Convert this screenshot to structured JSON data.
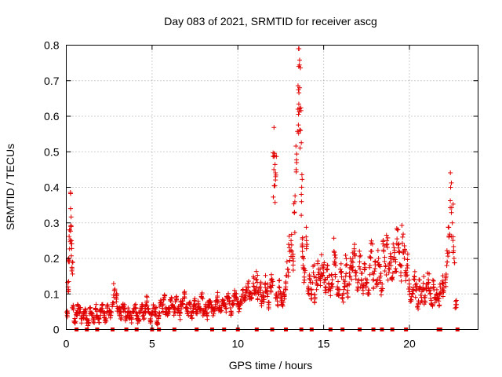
{
  "chart_data": {
    "type": "scatter",
    "title": "Day 083 of 2021, SRMTID for receiver ascg",
    "xlabel": "GPS time / hours",
    "ylabel": "SRMTID / TECUs",
    "xlim": [
      0,
      24
    ],
    "ylim": [
      0,
      0.8
    ],
    "xticks": [
      0,
      5,
      10,
      15,
      20
    ],
    "yticks": [
      0,
      0.1,
      0.2,
      0.3,
      0.4,
      0.5,
      0.6,
      0.7,
      0.8
    ],
    "xtick_labels": [
      "0",
      "5",
      "10",
      "15",
      "20"
    ],
    "ytick_labels": [
      "0",
      "0.1",
      "0.2",
      "0.3",
      "0.4",
      "0.5",
      "0.6",
      "0.7",
      "0.8"
    ],
    "grid": true,
    "marker": "+",
    "color": "#e00000",
    "series": [
      {
        "name": "SRMTID",
        "x": [
          0.05,
          0.1,
          0.15,
          0.2,
          0.25,
          0.3,
          0.35,
          0.4,
          0.5,
          0.6,
          0.7,
          0.8,
          0.9,
          1.0,
          1.1,
          1.2,
          1.3,
          1.4,
          1.5,
          1.6,
          1.7,
          1.8,
          1.9,
          2.0,
          2.1,
          2.2,
          2.3,
          2.4,
          2.5,
          2.6,
          2.7,
          2.8,
          2.9,
          3.0,
          3.1,
          3.2,
          3.3,
          3.4,
          3.5,
          3.6,
          3.7,
          3.8,
          3.9,
          4.0,
          4.1,
          4.2,
          4.3,
          4.4,
          4.5,
          4.6,
          4.7,
          4.8,
          4.9,
          5.0,
          5.1,
          5.2,
          5.3,
          5.4,
          5.5,
          5.6,
          5.7,
          5.8,
          5.9,
          6.0,
          6.1,
          6.2,
          6.3,
          6.4,
          6.5,
          6.6,
          6.7,
          6.8,
          6.9,
          7.0,
          7.1,
          7.2,
          7.3,
          7.4,
          7.5,
          7.6,
          7.7,
          7.8,
          7.9,
          8.0,
          8.1,
          8.2,
          8.3,
          8.4,
          8.5,
          8.6,
          8.7,
          8.8,
          8.9,
          9.0,
          9.1,
          9.2,
          9.3,
          9.4,
          9.5,
          9.6,
          9.7,
          9.8,
          9.9,
          10.0,
          10.1,
          10.2,
          10.3,
          10.4,
          10.5,
          10.6,
          10.7,
          10.8,
          10.9,
          11.0,
          11.1,
          11.2,
          11.3,
          11.4,
          11.5,
          11.6,
          11.7,
          11.8,
          11.9,
          12.0,
          12.1,
          12.15,
          12.2,
          12.25,
          12.3,
          12.4,
          12.5,
          12.6,
          12.7,
          12.8,
          12.9,
          13.0,
          13.1,
          13.2,
          13.3,
          13.4,
          13.5,
          13.55,
          13.6,
          13.65,
          13.7,
          13.75,
          13.8,
          13.9,
          14.0,
          14.1,
          14.2,
          14.3,
          14.4,
          14.5,
          14.6,
          14.7,
          14.8,
          14.9,
          15.0,
          15.1,
          15.2,
          15.3,
          15.4,
          15.5,
          15.6,
          15.7,
          15.8,
          15.9,
          16.0,
          16.1,
          16.2,
          16.3,
          16.4,
          16.5,
          16.6,
          16.7,
          16.8,
          16.9,
          17.0,
          17.1,
          17.2,
          17.3,
          17.4,
          17.5,
          17.6,
          17.7,
          17.8,
          17.9,
          18.0,
          18.1,
          18.2,
          18.3,
          18.4,
          18.5,
          18.6,
          18.7,
          18.8,
          18.9,
          19.0,
          19.1,
          19.2,
          19.3,
          19.4,
          19.5,
          19.6,
          19.7,
          19.8,
          19.9,
          20.0,
          20.1,
          20.2,
          20.3,
          20.4,
          20.5,
          20.6,
          20.7,
          20.8,
          20.9,
          21.0,
          21.1,
          21.2,
          21.3,
          21.4,
          21.5,
          21.6,
          21.7,
          21.8,
          21.9,
          22.0,
          22.1,
          22.2,
          22.3,
          22.4,
          22.5,
          22.6,
          22.7
        ],
        "y": [
          0.04,
          0.12,
          0.2,
          0.28,
          0.34,
          0.25,
          0.19,
          0.06,
          0.02,
          0.04,
          0.06,
          0.05,
          0.03,
          0.04,
          0.05,
          0.03,
          0.02,
          0.05,
          0.04,
          0.03,
          0.06,
          0.04,
          0.02,
          0.05,
          0.06,
          0.04,
          0.03,
          0.06,
          0.05,
          0.04,
          0.07,
          0.11,
          0.09,
          0.06,
          0.05,
          0.04,
          0.07,
          0.06,
          0.03,
          0.05,
          0.04,
          0.03,
          0.05,
          0.06,
          0.04,
          0.03,
          0.05,
          0.07,
          0.04,
          0.06,
          0.08,
          0.05,
          0.03,
          0.04,
          0.06,
          0.05,
          0.02,
          0.04,
          0.07,
          0.06,
          0.09,
          0.05,
          0.04,
          0.06,
          0.08,
          0.07,
          0.05,
          0.09,
          0.06,
          0.04,
          0.07,
          0.08,
          0.1,
          0.06,
          0.05,
          0.07,
          0.04,
          0.06,
          0.08,
          0.05,
          0.07,
          0.06,
          0.09,
          0.05,
          0.06,
          0.04,
          0.07,
          0.08,
          0.06,
          0.05,
          0.07,
          0.09,
          0.06,
          0.05,
          0.08,
          0.07,
          0.06,
          0.09,
          0.08,
          0.05,
          0.07,
          0.1,
          0.09,
          0.07,
          0.06,
          0.08,
          0.1,
          0.09,
          0.11,
          0.12,
          0.1,
          0.09,
          0.13,
          0.11,
          0.14,
          0.1,
          0.12,
          0.08,
          0.09,
          0.13,
          0.11,
          0.07,
          0.12,
          0.14,
          0.45,
          0.49,
          0.43,
          0.1,
          0.08,
          0.12,
          0.09,
          0.07,
          0.1,
          0.13,
          0.17,
          0.23,
          0.25,
          0.2,
          0.33,
          0.45,
          0.62,
          0.74,
          0.68,
          0.56,
          0.38,
          0.24,
          0.18,
          0.16,
          0.25,
          0.12,
          0.14,
          0.1,
          0.16,
          0.09,
          0.13,
          0.17,
          0.15,
          0.18,
          0.16,
          0.12,
          0.17,
          0.13,
          0.11,
          0.14,
          0.22,
          0.18,
          0.12,
          0.1,
          0.16,
          0.09,
          0.13,
          0.18,
          0.11,
          0.15,
          0.17,
          0.2,
          0.21,
          0.16,
          0.12,
          0.19,
          0.14,
          0.11,
          0.17,
          0.13,
          0.1,
          0.18,
          0.22,
          0.14,
          0.19,
          0.13,
          0.2,
          0.15,
          0.11,
          0.22,
          0.18,
          0.24,
          0.16,
          0.2,
          0.14,
          0.23,
          0.19,
          0.28,
          0.22,
          0.16,
          0.26,
          0.2,
          0.15,
          0.18,
          0.12,
          0.08,
          0.1,
          0.14,
          0.11,
          0.07,
          0.12,
          0.09,
          0.13,
          0.08,
          0.11,
          0.14,
          0.1,
          0.07,
          0.12,
          0.09,
          0.1,
          0.08,
          0.12,
          0.13,
          0.11,
          0.14,
          0.19,
          0.26,
          0.4,
          0.3,
          0.2,
          0.07
        ]
      }
    ],
    "zero_markers_x": [
      0.6,
      1.2,
      1.8,
      2.7,
      3.5,
      4.1,
      5.0,
      5.4,
      6.3,
      7.6,
      8.5,
      9.2,
      10.0,
      11.1,
      12.0,
      12.8,
      13.7,
      14.3,
      15.4,
      16.1,
      17.1,
      17.9,
      18.4,
      19.0,
      19.8,
      21.7,
      21.8,
      22.8
    ]
  }
}
